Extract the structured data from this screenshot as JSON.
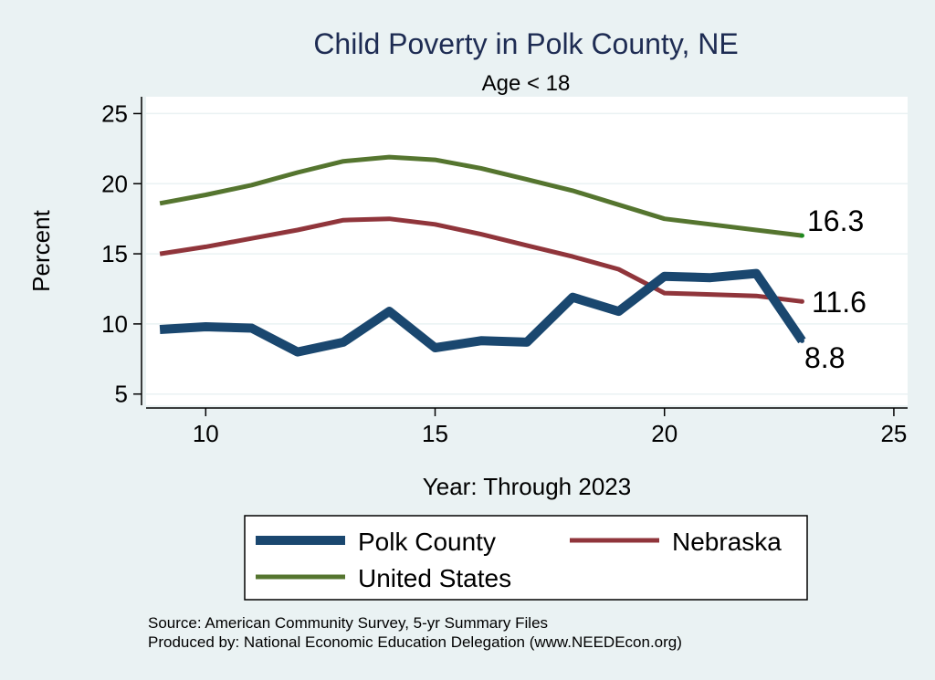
{
  "chart_data": {
    "type": "line",
    "title": "Child Poverty in Polk County, NE",
    "subtitle": "Age < 18",
    "xlabel": "Year: Through 2023",
    "ylabel": "Percent",
    "xlim": [
      8.7,
      25.3
    ],
    "ylim": [
      4.2,
      26.2
    ],
    "xticks": [
      10,
      15,
      20,
      25
    ],
    "yticks": [
      5,
      10,
      15,
      20,
      25
    ],
    "x": [
      9,
      10,
      11,
      12,
      13,
      14,
      15,
      16,
      17,
      18,
      19,
      20,
      21,
      22,
      23
    ],
    "series": [
      {
        "name": "Polk County",
        "color": "#1a476f",
        "values": [
          9.6,
          9.8,
          9.7,
          8.0,
          8.7,
          10.9,
          8.3,
          8.8,
          8.7,
          11.9,
          10.9,
          13.4,
          13.3,
          13.6,
          8.8
        ],
        "end_label": "8.8"
      },
      {
        "name": "Nebraska",
        "color": "#90353b",
        "values": [
          15.0,
          15.5,
          16.1,
          16.7,
          17.4,
          17.5,
          17.1,
          16.4,
          15.6,
          14.8,
          13.9,
          12.2,
          12.1,
          12.0,
          11.6
        ],
        "end_label": "11.6"
      },
      {
        "name": "United States",
        "color": "#55752f",
        "values": [
          18.6,
          19.2,
          19.9,
          20.8,
          21.6,
          21.9,
          21.7,
          21.1,
          20.3,
          19.5,
          18.5,
          17.5,
          17.1,
          16.7,
          16.3
        ],
        "end_label": "16.3"
      }
    ],
    "legend_position": "bottom",
    "grid": true
  },
  "notes": {
    "source": "Source: American Community Survey, 5-yr Summary Files",
    "produced_by": "Produced by: National Economic Education Delegation (www.NEEDEcon.org)"
  }
}
